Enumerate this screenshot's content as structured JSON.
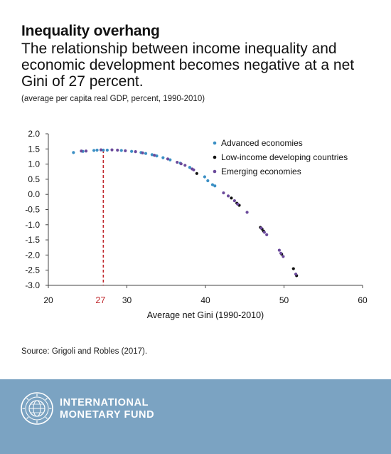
{
  "header": {
    "title": "Inequality overhang",
    "subtitle": "The relationship between income inequality and economic development becomes negative at a net Gini of 27 percent.",
    "note": "(average per capita real GDP, percent, 1990-2010)"
  },
  "source": "Source: Grigoli and Robles (2017).",
  "footer": {
    "org_line1": "INTERNATIONAL",
    "org_line2": "MONETARY FUND",
    "background": "#7ba3c2"
  },
  "chart_data": {
    "type": "scatter",
    "xlabel": "Average net Gini (1990-2010)",
    "ylabel": "",
    "xlim": [
      20,
      60
    ],
    "ylim": [
      -3.0,
      2.0
    ],
    "x_ticks": [
      "20",
      "30",
      "40",
      "50",
      "60"
    ],
    "y_ticks": [
      "2.0",
      "1.5",
      "1.0",
      "0.5",
      "0.0",
      "-0.5",
      "-1.0",
      "-1.5",
      "-2.0",
      "-2.5",
      "-3.0"
    ],
    "threshold": {
      "x": 27,
      "label": "27",
      "color": "#c0282d"
    },
    "legend_position": "top-right",
    "grid": false,
    "series": [
      {
        "name": "Advanced economies",
        "color": "#3b8fc4",
        "points": [
          [
            23.2,
            1.38
          ],
          [
            24.4,
            1.42
          ],
          [
            25.8,
            1.45
          ],
          [
            26.2,
            1.46
          ],
          [
            27.0,
            1.46
          ],
          [
            27.5,
            1.46
          ],
          [
            29.3,
            1.45
          ],
          [
            30.6,
            1.42
          ],
          [
            31.8,
            1.38
          ],
          [
            32.4,
            1.35
          ],
          [
            33.2,
            1.31
          ],
          [
            33.8,
            1.27
          ],
          [
            34.6,
            1.21
          ],
          [
            35.5,
            1.14
          ],
          [
            36.8,
            1.03
          ],
          [
            38.0,
            0.89
          ],
          [
            39.9,
            0.58
          ],
          [
            40.3,
            0.45
          ],
          [
            40.9,
            0.32
          ],
          [
            41.2,
            0.28
          ]
        ]
      },
      {
        "name": "Low-income developing countries",
        "color": "#111111",
        "points": [
          [
            38.9,
            0.69
          ],
          [
            43.3,
            -0.12
          ],
          [
            44.0,
            -0.29
          ],
          [
            44.3,
            -0.36
          ],
          [
            47.0,
            -1.09
          ],
          [
            47.2,
            -1.14
          ],
          [
            47.4,
            -1.21
          ],
          [
            49.7,
            -1.97
          ],
          [
            51.2,
            -2.45
          ],
          [
            51.6,
            -2.68
          ]
        ]
      },
      {
        "name": "Emerging economies",
        "color": "#6b4a9b",
        "points": [
          [
            24.2,
            1.43
          ],
          [
            24.8,
            1.43
          ],
          [
            26.7,
            1.47
          ],
          [
            28.1,
            1.47
          ],
          [
            28.8,
            1.46
          ],
          [
            29.8,
            1.44
          ],
          [
            31.1,
            1.41
          ],
          [
            32.0,
            1.37
          ],
          [
            33.5,
            1.29
          ],
          [
            35.2,
            1.17
          ],
          [
            36.4,
            1.06
          ],
          [
            36.9,
            1.01
          ],
          [
            37.4,
            0.96
          ],
          [
            38.3,
            0.84
          ],
          [
            38.5,
            0.81
          ],
          [
            42.3,
            0.05
          ],
          [
            42.9,
            -0.05
          ],
          [
            43.7,
            -0.21
          ],
          [
            44.1,
            -0.32
          ],
          [
            45.3,
            -0.59
          ],
          [
            47.1,
            -1.11
          ],
          [
            47.5,
            -1.25
          ],
          [
            47.8,
            -1.33
          ],
          [
            49.4,
            -1.84
          ],
          [
            49.6,
            -1.94
          ],
          [
            49.9,
            -2.05
          ],
          [
            51.5,
            -2.63
          ]
        ]
      }
    ]
  }
}
